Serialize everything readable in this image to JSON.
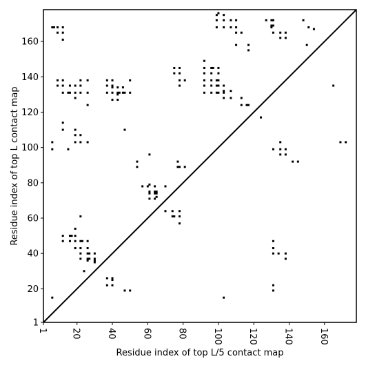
{
  "chart_data": {
    "type": "scatter",
    "title": "",
    "xlabel": "Residue index of top L/5 contact map",
    "ylabel": "Residue index of top L contact map",
    "xlim": [
      1,
      178
    ],
    "ylim": [
      1,
      178
    ],
    "xticks": [
      1,
      20,
      40,
      60,
      80,
      100,
      120,
      140,
      160
    ],
    "yticks": [
      1,
      20,
      40,
      60,
      80,
      100,
      120,
      140,
      160
    ],
    "xtick_labels": [
      "1",
      "20",
      "40",
      "60",
      "80",
      "100",
      "120",
      "140",
      "160"
    ],
    "ytick_labels": [
      "1",
      "20",
      "40",
      "60",
      "80",
      "100",
      "120",
      "140",
      "160"
    ],
    "grid": false,
    "legend": "none",
    "marker": "small filled square",
    "colors": {
      "marker": "#000000",
      "axes": "#000000",
      "diagonal": "#000000",
      "background": "#ffffff"
    },
    "diagonal": [
      [
        1,
        1
      ],
      [
        178,
        178
      ]
    ],
    "points": [
      [
        6,
        168
      ],
      [
        7,
        168
      ],
      [
        9,
        168
      ],
      [
        12,
        168
      ],
      [
        9,
        165
      ],
      [
        12,
        165
      ],
      [
        12,
        161
      ],
      [
        9,
        138
      ],
      [
        12,
        138
      ],
      [
        9,
        135
      ],
      [
        12,
        135
      ],
      [
        16,
        135
      ],
      [
        19,
        135
      ],
      [
        22,
        138
      ],
      [
        22,
        135
      ],
      [
        26,
        138
      ],
      [
        12,
        131
      ],
      [
        15,
        131
      ],
      [
        16,
        131
      ],
      [
        19,
        131
      ],
      [
        22,
        131
      ],
      [
        26,
        131
      ],
      [
        19,
        128
      ],
      [
        26,
        124
      ],
      [
        37,
        138
      ],
      [
        40,
        138
      ],
      [
        37,
        135
      ],
      [
        40,
        135
      ],
      [
        40,
        134
      ],
      [
        43,
        134
      ],
      [
        46,
        134
      ],
      [
        37,
        131
      ],
      [
        40,
        131
      ],
      [
        43,
        131
      ],
      [
        43,
        130
      ],
      [
        44,
        131
      ],
      [
        46,
        131
      ],
      [
        47,
        131
      ],
      [
        50,
        131
      ],
      [
        50,
        138
      ],
      [
        40,
        127
      ],
      [
        43,
        127
      ],
      [
        47,
        110
      ],
      [
        12,
        114
      ],
      [
        12,
        110
      ],
      [
        19,
        110
      ],
      [
        19,
        107
      ],
      [
        22,
        107
      ],
      [
        6,
        103
      ],
      [
        6,
        99
      ],
      [
        15,
        99
      ],
      [
        19,
        103
      ],
      [
        22,
        103
      ],
      [
        26,
        103
      ],
      [
        54,
        92
      ],
      [
        54,
        89
      ],
      [
        61,
        96
      ],
      [
        77,
        92
      ],
      [
        77,
        89
      ],
      [
        78,
        89
      ],
      [
        81,
        89
      ],
      [
        57,
        78
      ],
      [
        60,
        78
      ],
      [
        61,
        79
      ],
      [
        64,
        78
      ],
      [
        70,
        78
      ],
      [
        61,
        75
      ],
      [
        64,
        75
      ],
      [
        65,
        75
      ],
      [
        61,
        74
      ],
      [
        64,
        74
      ],
      [
        65,
        74
      ],
      [
        61,
        71
      ],
      [
        64,
        71
      ],
      [
        65,
        72
      ],
      [
        70,
        64
      ],
      [
        74,
        64
      ],
      [
        78,
        64
      ],
      [
        74,
        61
      ],
      [
        75,
        61
      ],
      [
        78,
        61
      ],
      [
        78,
        57
      ],
      [
        75,
        145
      ],
      [
        78,
        145
      ],
      [
        75,
        142
      ],
      [
        78,
        142
      ],
      [
        78,
        138
      ],
      [
        81,
        138
      ],
      [
        78,
        135
      ],
      [
        92,
        149
      ],
      [
        92,
        145
      ],
      [
        96,
        145
      ],
      [
        97,
        145
      ],
      [
        100,
        145
      ],
      [
        92,
        142
      ],
      [
        96,
        142
      ],
      [
        100,
        142
      ],
      [
        92,
        138
      ],
      [
        96,
        138
      ],
      [
        99,
        138
      ],
      [
        100,
        138
      ],
      [
        92,
        135
      ],
      [
        96,
        135
      ],
      [
        99,
        135
      ],
      [
        100,
        135
      ],
      [
        103,
        135
      ],
      [
        103,
        132
      ],
      [
        92,
        131
      ],
      [
        96,
        131
      ],
      [
        99,
        131
      ],
      [
        100,
        131
      ],
      [
        103,
        131
      ],
      [
        107,
        132
      ],
      [
        103,
        128
      ],
      [
        107,
        128
      ],
      [
        99,
        175
      ],
      [
        100,
        176
      ],
      [
        103,
        175
      ],
      [
        99,
        172
      ],
      [
        103,
        172
      ],
      [
        107,
        172
      ],
      [
        110,
        172
      ],
      [
        99,
        168
      ],
      [
        103,
        168
      ],
      [
        107,
        168
      ],
      [
        110,
        168
      ],
      [
        110,
        165
      ],
      [
        113,
        165
      ],
      [
        110,
        158
      ],
      [
        117,
        158
      ],
      [
        117,
        155
      ],
      [
        113,
        128
      ],
      [
        113,
        124
      ],
      [
        116,
        124
      ],
      [
        117,
        124
      ],
      [
        124,
        117
      ],
      [
        127,
        172
      ],
      [
        130,
        172
      ],
      [
        131,
        172
      ],
      [
        130,
        169
      ],
      [
        131,
        169
      ],
      [
        130,
        168
      ],
      [
        131,
        165
      ],
      [
        135,
        165
      ],
      [
        138,
        165
      ],
      [
        135,
        162
      ],
      [
        138,
        162
      ],
      [
        148,
        172
      ],
      [
        151,
        168
      ],
      [
        154,
        167
      ],
      [
        150,
        158
      ],
      [
        165,
        135
      ],
      [
        131,
        99
      ],
      [
        135,
        99
      ],
      [
        138,
        99
      ],
      [
        135,
        103
      ],
      [
        135,
        96
      ],
      [
        138,
        96
      ],
      [
        142,
        92
      ],
      [
        145,
        92
      ],
      [
        169,
        103
      ],
      [
        172,
        103
      ],
      [
        131,
        47
      ],
      [
        131,
        43
      ],
      [
        131,
        40
      ],
      [
        134,
        40
      ],
      [
        138,
        40
      ],
      [
        138,
        37
      ],
      [
        131,
        22
      ],
      [
        131,
        19
      ],
      [
        19,
        54
      ],
      [
        12,
        50
      ],
      [
        16,
        50
      ],
      [
        17,
        50
      ],
      [
        19,
        50
      ],
      [
        12,
        47
      ],
      [
        16,
        47
      ],
      [
        19,
        47
      ],
      [
        22,
        47
      ],
      [
        23,
        47
      ],
      [
        26,
        47
      ],
      [
        19,
        43
      ],
      [
        22,
        43
      ],
      [
        26,
        43
      ],
      [
        22,
        40
      ],
      [
        26,
        40
      ],
      [
        27,
        40
      ],
      [
        30,
        40
      ],
      [
        22,
        37
      ],
      [
        26,
        37
      ],
      [
        27,
        37
      ],
      [
        26,
        36
      ],
      [
        30,
        37
      ],
      [
        30,
        36
      ],
      [
        30,
        35
      ],
      [
        24,
        30
      ],
      [
        22,
        61
      ],
      [
        6,
        15
      ],
      [
        37,
        26
      ],
      [
        40,
        26
      ],
      [
        40,
        25
      ],
      [
        37,
        22
      ],
      [
        40,
        22
      ],
      [
        47,
        19
      ],
      [
        50,
        19
      ],
      [
        103,
        15
      ]
    ]
  }
}
